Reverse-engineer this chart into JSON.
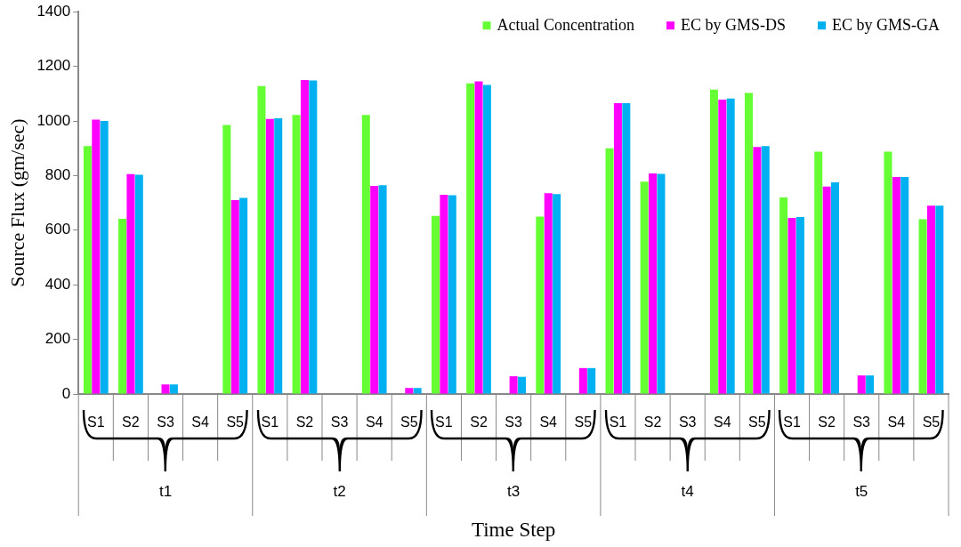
{
  "chart_data": {
    "type": "bar",
    "xlabel": "Time Step",
    "ylabel": "Source Flux (gm/sec)",
    "categories": [
      "S1",
      "S2",
      "S3",
      "S4",
      "S5",
      "S1",
      "S2",
      "S3",
      "S4",
      "S5",
      "S1",
      "S2",
      "S3",
      "S4",
      "S5",
      "S1",
      "S2",
      "S3",
      "S4",
      "S5",
      "S1",
      "S2",
      "S3",
      "S4",
      "S5"
    ],
    "annotations": [
      "t1",
      "t2",
      "t3",
      "t4",
      "t5"
    ],
    "series": [
      {
        "name": "Actual Concentration",
        "color": "#66ff33",
        "values": [
          908,
          642,
          0,
          0,
          985,
          1128,
          1022,
          0,
          1022,
          0,
          652,
          1138,
          0,
          650,
          0,
          900,
          778,
          0,
          1115,
          1103,
          720,
          888,
          0,
          888,
          640
        ]
      },
      {
        "name": "EC by GMS-DS",
        "color": "#ff00ff",
        "values": [
          1005,
          805,
          35,
          0,
          710,
          1007,
          1150,
          0,
          762,
          22,
          730,
          1145,
          65,
          735,
          95,
          1065,
          808,
          0,
          1078,
          905,
          645,
          760,
          68,
          795,
          690
        ]
      },
      {
        "name": "EC by GMS-GA",
        "color": "#00b0f0",
        "values": [
          1000,
          803,
          35,
          0,
          718,
          1010,
          1148,
          0,
          765,
          22,
          728,
          1132,
          63,
          732,
          95,
          1065,
          806,
          0,
          1082,
          908,
          648,
          775,
          68,
          795,
          690
        ]
      }
    ],
    "ylim": [
      0,
      1400
    ],
    "yticks": [
      0,
      200,
      400,
      600,
      800,
      1000,
      1200,
      1400
    ],
    "grid": false,
    "legend": "top right"
  }
}
